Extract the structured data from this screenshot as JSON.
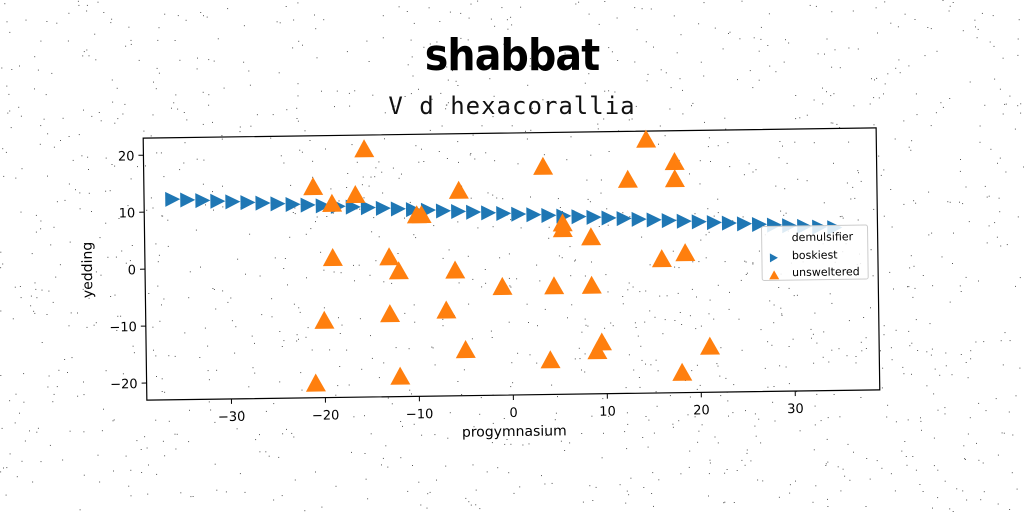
{
  "suptitle": "shabbat",
  "chart_data": {
    "type": "scatter",
    "title": "V d hexacorallia",
    "xlabel": "progymnasium",
    "ylabel": "yedding",
    "xlim": [
      -39,
      39
    ],
    "ylim": [
      -23,
      23
    ],
    "xticks": [
      -30,
      -20,
      -10,
      0,
      10,
      20,
      30
    ],
    "yticks": [
      -20,
      -10,
      0,
      10,
      20
    ],
    "xtick_labels": [
      "−30",
      "−20",
      "−10",
      "0",
      "10",
      "20",
      "30"
    ],
    "ytick_labels": [
      "−20",
      "−10",
      "0",
      "10",
      "20"
    ],
    "grid": false,
    "legend_position": "right",
    "series": [
      {
        "name": "demulsifier",
        "marker": "none",
        "color": "#1f77b4",
        "x": [],
        "y": []
      },
      {
        "name": "boskiest",
        "marker": "triangle-right",
        "color": "#1f77b4",
        "x": [
          -36,
          -34.4,
          -32.8,
          -31.2,
          -29.6,
          -28,
          -26.4,
          -24.8,
          -23.2,
          -21.6,
          -20,
          -18.4,
          -16.8,
          -15.2,
          -13.6,
          -12,
          -10.4,
          -8.8,
          -7.2,
          -5.6,
          -4,
          -2.4,
          -0.8,
          0.8,
          2.4,
          4,
          5.6,
          7.2,
          8.8,
          10.4,
          12,
          13.6,
          15.2,
          16.8,
          18.4,
          20,
          21.6,
          23.2,
          24.8,
          26.4,
          28,
          29.6,
          31.2,
          32.8,
          34.4
        ],
        "y": [
          12.2,
          12.05,
          11.9,
          11.75,
          11.6,
          11.45,
          11.3,
          11.15,
          11,
          10.85,
          10.7,
          10.55,
          10.4,
          10.25,
          10.1,
          9.95,
          9.8,
          9.65,
          9.5,
          9.35,
          9.2,
          9.05,
          8.9,
          8.75,
          8.6,
          8.45,
          8.3,
          8.15,
          8,
          7.85,
          7.7,
          7.55,
          7.4,
          7.25,
          7.1,
          6.95,
          6.8,
          6.65,
          6.5,
          6.35,
          6.2,
          6.05,
          5.9,
          5.75,
          5.6
        ]
      },
      {
        "name": "unsweltered",
        "marker": "triangle-up",
        "color": "#ff7f0e",
        "x": [
          -21,
          -15.5,
          -16.5,
          -19,
          -5.5,
          3.5,
          14.5,
          17.5,
          17.5,
          12.5,
          -9.5,
          -10,
          5.5,
          5.5,
          8.5,
          -19,
          -13,
          -12,
          -6,
          -1,
          4.5,
          8.5,
          16,
          18.5,
          -20,
          -13,
          -7,
          -5,
          4,
          9,
          9.5,
          21,
          -21,
          -12,
          18
        ],
        "y": [
          14,
          20.5,
          12.5,
          11,
          13,
          17,
          21.5,
          17.5,
          14.5,
          14.5,
          8.8,
          8.8,
          7,
          6,
          4.5,
          1.5,
          1.5,
          -1,
          -1,
          -4,
          -4,
          -4,
          0.5,
          1.5,
          -9.5,
          -8.5,
          -8,
          -15,
          -17,
          -15.5,
          -14,
          -15,
          -20.5,
          -19.5,
          -19.5
        ]
      }
    ]
  }
}
